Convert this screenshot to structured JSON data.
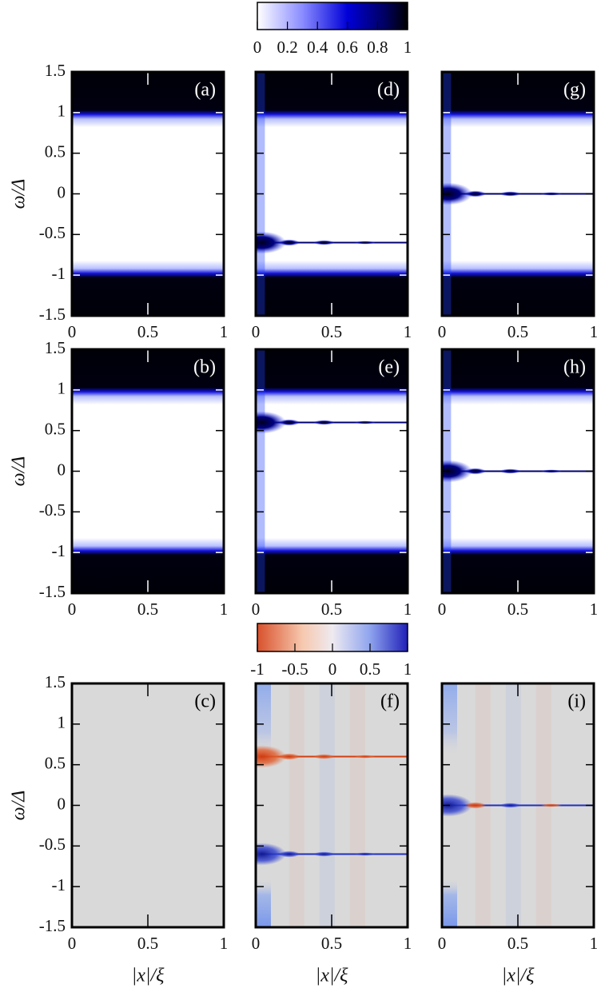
{
  "chart_data": [
    {
      "type": "heatmap",
      "colormap": "density",
      "label": "(a)",
      "xlim": [
        0,
        1
      ],
      "xticks": [
        0,
        0.5,
        1
      ],
      "ylim": [
        -1.5,
        1.5
      ],
      "yticks": [
        -1.5,
        -1,
        -0.5,
        0,
        0.5,
        1,
        1.5
      ],
      "ylabel": "ω/Δ",
      "gap": 1,
      "impurity": false,
      "bound_states": []
    },
    {
      "type": "heatmap",
      "colormap": "density",
      "label": "(d)",
      "xlim": [
        0,
        1
      ],
      "xticks": [
        0,
        0.5,
        1
      ],
      "ylim": [
        -1.5,
        1.5
      ],
      "yticks": [
        -1.5,
        -1,
        -0.5,
        0,
        0.5,
        1,
        1.5
      ],
      "gap": 1,
      "impurity": true,
      "bound_states": [
        -0.6
      ]
    },
    {
      "type": "heatmap",
      "colormap": "density",
      "label": "(g)",
      "xlim": [
        0,
        1
      ],
      "xticks": [
        0,
        0.5,
        1
      ],
      "ylim": [
        -1.5,
        1.5
      ],
      "yticks": [
        -1.5,
        -1,
        -0.5,
        0,
        0.5,
        1,
        1.5
      ],
      "gap": 1,
      "impurity": true,
      "bound_states": [
        0
      ]
    },
    {
      "type": "heatmap",
      "colormap": "density",
      "label": "(b)",
      "xlim": [
        0,
        1
      ],
      "xticks": [
        0,
        0.5,
        1
      ],
      "ylim": [
        -1.5,
        1.5
      ],
      "yticks": [
        -1.5,
        -1,
        -0.5,
        0,
        0.5,
        1,
        1.5
      ],
      "ylabel": "ω/Δ",
      "gap": 1,
      "impurity": false,
      "bound_states": []
    },
    {
      "type": "heatmap",
      "colormap": "density",
      "label": "(e)",
      "xlim": [
        0,
        1
      ],
      "xticks": [
        0,
        0.5,
        1
      ],
      "ylim": [
        -1.5,
        1.5
      ],
      "yticks": [
        -1.5,
        -1,
        -0.5,
        0,
        0.5,
        1,
        1.5
      ],
      "gap": 1,
      "impurity": true,
      "bound_states": [
        0.6
      ]
    },
    {
      "type": "heatmap",
      "colormap": "density",
      "label": "(h)",
      "xlim": [
        0,
        1
      ],
      "xticks": [
        0,
        0.5,
        1
      ],
      "ylim": [
        -1.5,
        1.5
      ],
      "yticks": [
        -1.5,
        -1,
        -0.5,
        0,
        0.5,
        1,
        1.5
      ],
      "gap": 1,
      "impurity": true,
      "bound_states": [
        0
      ]
    },
    {
      "type": "heatmap",
      "colormap": "diverging",
      "label": "(c)",
      "xlim": [
        0,
        1
      ],
      "xticks": [
        0,
        0.5,
        1
      ],
      "ylim": [
        -1.5,
        1.5
      ],
      "yticks": [
        -1.5,
        -1,
        -0.5,
        0,
        0.5,
        1,
        1.5
      ],
      "ylabel": "ω/Δ",
      "xlabel": "|x|/ξ",
      "gap": 1,
      "impurity": false,
      "bound_states": [],
      "signs": []
    },
    {
      "type": "heatmap",
      "colormap": "diverging",
      "label": "(f)",
      "xlim": [
        0,
        1
      ],
      "xticks": [
        0,
        0.5,
        1
      ],
      "ylim": [
        -1.5,
        1.5
      ],
      "yticks": [
        -1.5,
        -1,
        -0.5,
        0,
        0.5,
        1,
        1.5
      ],
      "xlabel": "|x|/ξ",
      "gap": 1,
      "impurity": true,
      "bound_states": [
        0.6,
        -0.6
      ],
      "signs": [
        -1,
        1
      ]
    },
    {
      "type": "heatmap",
      "colormap": "diverging",
      "label": "(i)",
      "xlim": [
        0,
        1
      ],
      "xticks": [
        0,
        0.5,
        1
      ],
      "ylim": [
        -1.5,
        1.5
      ],
      "yticks": [
        -1.5,
        -1,
        -0.5,
        0,
        0.5,
        1,
        1.5
      ],
      "xlabel": "|x|/ξ",
      "gap": 1,
      "impurity": true,
      "bound_states": [
        0
      ],
      "signs": [
        1
      ],
      "oscillating": true
    }
  ],
  "colorbars": [
    {
      "colormap": "density",
      "lim": [
        0,
        1
      ],
      "ticks": [
        0,
        0.2,
        0.4,
        0.6,
        0.8,
        1
      ]
    },
    {
      "colormap": "diverging",
      "lim": [
        -1,
        1
      ],
      "ticks": [
        -1,
        -0.5,
        0,
        0.5,
        1
      ]
    }
  ]
}
